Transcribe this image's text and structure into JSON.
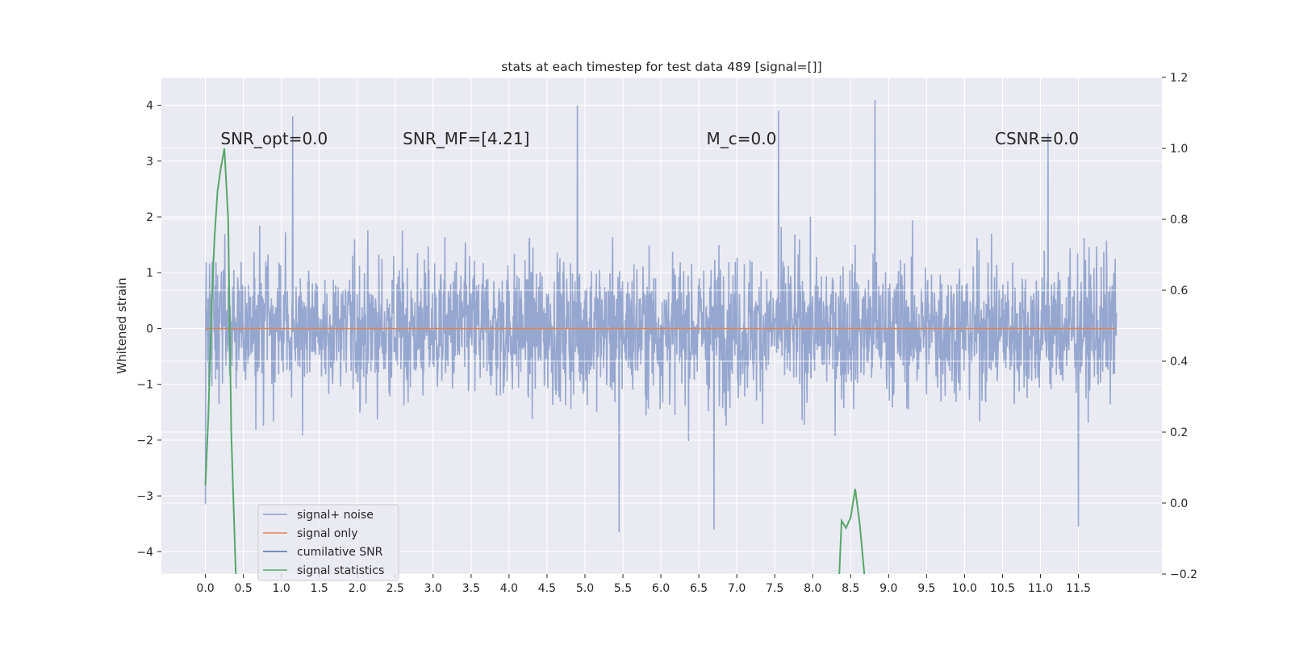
{
  "chart_data": {
    "type": "line",
    "title": "stats at each timestep for test data 489 [signal=[]]",
    "ylabel": "Whitened strain",
    "xlabel": "",
    "xlim": [
      -0.58,
      12.6
    ],
    "ylim": [
      -4.4,
      4.5
    ],
    "ylim_right": [
      -0.2,
      1.2
    ],
    "grid": true,
    "x_ticks": [
      "0.0",
      "0.5",
      "1.0",
      "1.5",
      "2.0",
      "2.5",
      "3.0",
      "3.5",
      "4.0",
      "4.5",
      "5.0",
      "5.5",
      "6.0",
      "6.5",
      "7.0",
      "7.5",
      "8.0",
      "8.5",
      "9.0",
      "9.5",
      "10.0",
      "10.5",
      "11.0",
      "11.5"
    ],
    "y_ticks_left": [
      "4",
      "3",
      "2",
      "1",
      "0",
      "−1",
      "−2",
      "−3",
      "−4"
    ],
    "y_ticks_right": [
      "1.2",
      "1.0",
      "0.8",
      "0.6",
      "0.4",
      "0.2",
      "0.0",
      "−0.2"
    ],
    "legend_position": "lower-left",
    "colors": {
      "noise": "#8da0cb",
      "signal_only": "#dd8452",
      "cumulative": "#4c72b0",
      "stats": "#55a868",
      "background": "#eaeaf2",
      "grid": "#ffffff"
    },
    "series": [
      {
        "name": "signal+ noise",
        "axis": "left",
        "x_range": [
          0.0,
          12.0
        ],
        "approx_low": -2.0,
        "approx_high": 2.0,
        "peaks": [
          {
            "x": 4.9,
            "y": 4.0
          },
          {
            "x": 8.82,
            "y": 4.1
          },
          {
            "x": 7.55,
            "y": 3.9
          },
          {
            "x": 1.15,
            "y": 3.8
          },
          {
            "x": 11.1,
            "y": 3.5
          },
          {
            "x": 5.45,
            "y": -3.65
          },
          {
            "x": 6.7,
            "y": -3.6
          },
          {
            "x": 11.5,
            "y": -3.55
          },
          {
            "x": 0.0,
            "y": -3.15
          }
        ]
      },
      {
        "name": "signal only",
        "axis": "left",
        "x": [
          0.0,
          12.0
        ],
        "y": [
          0.0,
          0.0
        ]
      },
      {
        "name": "cumilative SNR",
        "axis": "right",
        "x": [],
        "y": []
      },
      {
        "name": "signal statistics",
        "axis": "right",
        "x": [
          0.0,
          0.04,
          0.08,
          0.12,
          0.16,
          0.2,
          0.25,
          0.3,
          0.34,
          0.4,
          8.35,
          8.38,
          8.44,
          8.5,
          8.56,
          8.62,
          8.68
        ],
        "y": [
          0.05,
          0.25,
          0.55,
          0.75,
          0.88,
          0.94,
          1.0,
          0.8,
          0.2,
          -0.2,
          -0.2,
          -0.05,
          -0.07,
          -0.04,
          0.04,
          -0.06,
          -0.2
        ]
      }
    ],
    "annotations": [
      {
        "text": "SNR_opt=0.0",
        "x": 0.2,
        "y": 3.3
      },
      {
        "text": "SNR_MF=[4.21]",
        "x": 2.6,
        "y": 3.3
      },
      {
        "text": "M_c=0.0",
        "x": 6.6,
        "y": 3.3
      },
      {
        "text": "CSNR=0.0",
        "x": 10.4,
        "y": 3.3
      }
    ]
  }
}
